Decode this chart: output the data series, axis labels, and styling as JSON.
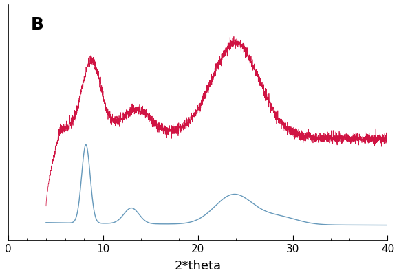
{
  "title_label": "B",
  "xlabel": "2*theta",
  "xlim": [
    0,
    40
  ],
  "bg_color": "#ffffff",
  "red_color": "#cc0033",
  "blue_color": "#6699bb",
  "tick_label_fontsize": 11,
  "xlabel_fontsize": 13
}
